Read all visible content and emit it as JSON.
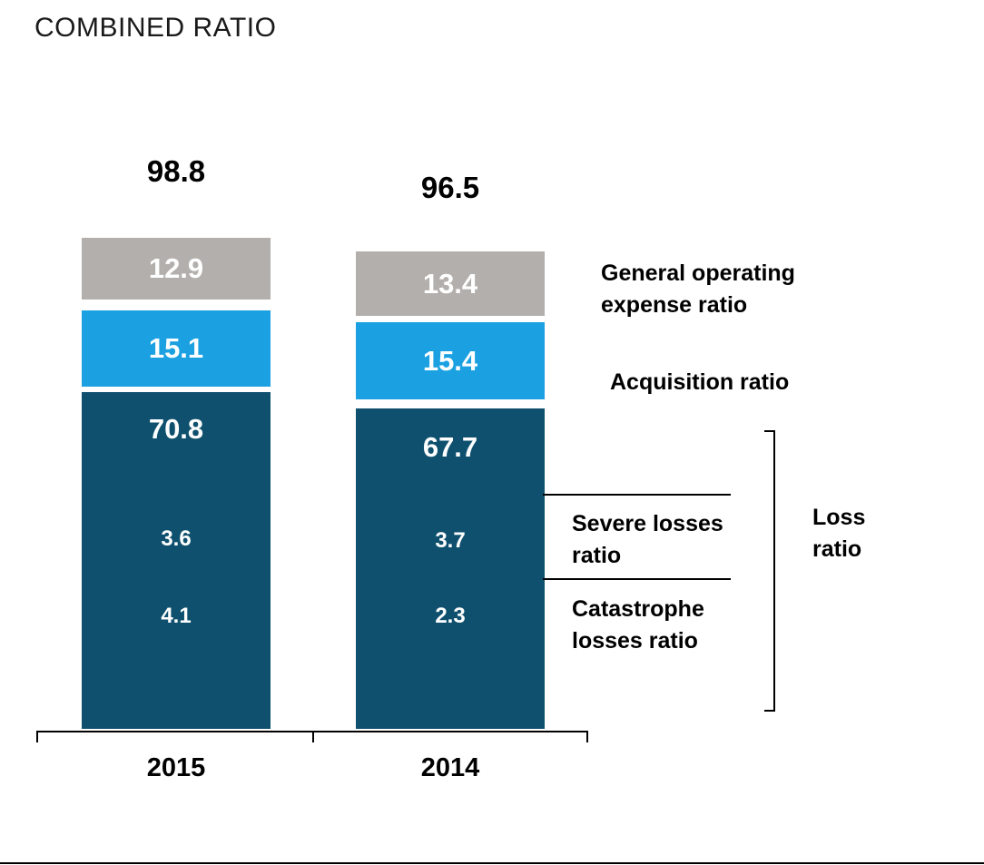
{
  "title": "COMBINED RATIO",
  "chart_data": {
    "type": "bar",
    "stacked": true,
    "title": "COMBINED RATIO",
    "categories": [
      "2015",
      "2014"
    ],
    "totals": [
      "98.8",
      "96.5"
    ],
    "series": [
      {
        "name": "General operating expense ratio",
        "color": "#b3afac",
        "values": [
          "12.9",
          "13.4"
        ]
      },
      {
        "name": "Acquisition ratio",
        "color": "#1ba1e2",
        "values": [
          "15.1",
          "15.4"
        ]
      },
      {
        "name": "Loss ratio",
        "color": "#0f506e",
        "values": [
          "70.8",
          "67.7"
        ]
      }
    ],
    "loss_breakdown": [
      {
        "name": "Severe losses ratio",
        "values": [
          "3.6",
          "3.7"
        ]
      },
      {
        "name": "Catastrophe losses ratio",
        "values": [
          "4.1",
          "2.3"
        ]
      }
    ],
    "ylim": [
      0,
      100
    ],
    "grid": false,
    "legend_position": "right"
  },
  "labels": {
    "general_operating": "General operating\nexpense ratio",
    "acquisition": "Acquisition ratio",
    "severe": "Severe losses\nratio",
    "catastrophe": "Catastrophe\nlosses ratio",
    "loss": "Loss\nratio"
  }
}
